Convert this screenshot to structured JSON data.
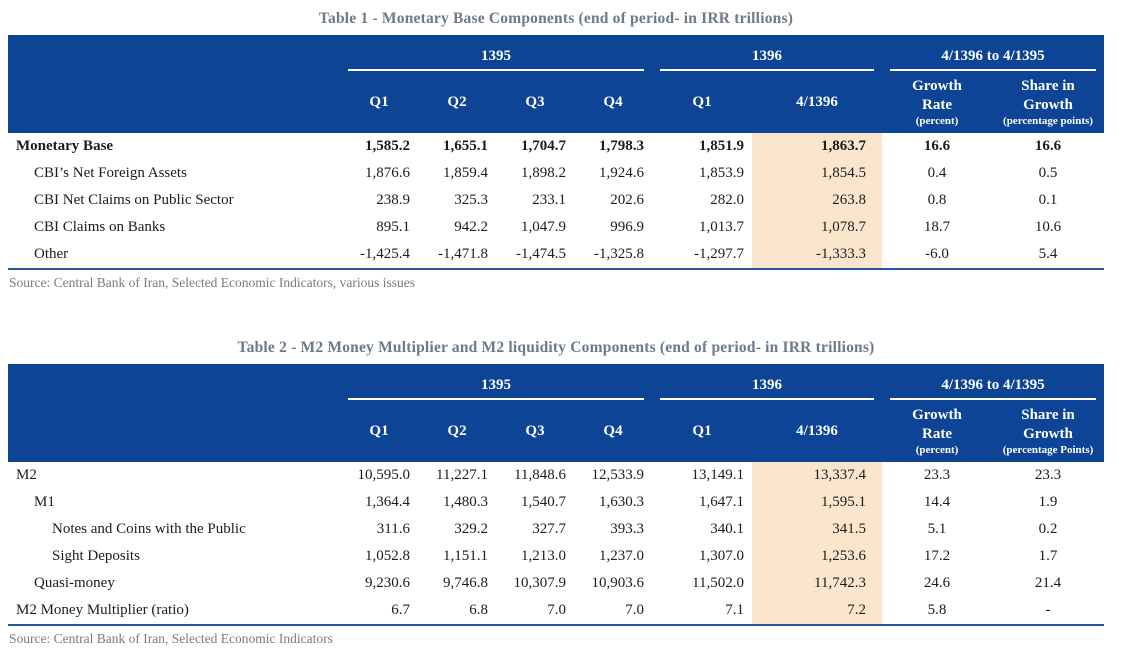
{
  "colors": {
    "header_background": "#0d4496",
    "header_text": "#ffffff",
    "highlight_column": "#fbe5cd",
    "rule_blue": "#2a52a0",
    "title_text": "#6d7a89",
    "source_text": "#797b7e",
    "body_text": "#1c1c1c"
  },
  "tables": [
    {
      "title": "Table 1 - Monetary Base Components (end of period- in IRR trillions)",
      "group_1395": "1395",
      "group_1396": "1396",
      "group_change": "4/1396 to 4/1395",
      "columns": [
        "Q1",
        "Q2",
        "Q3",
        "Q4",
        "Q1",
        "4/1396"
      ],
      "growth_header": {
        "line1": "Growth",
        "line2": "Rate",
        "sub": "(percent)"
      },
      "share_header": {
        "line1": "Share in",
        "line2": "Growth",
        "sub": "(percentage points)"
      },
      "rows": [
        {
          "label": "Monetary Base",
          "indent": 0,
          "bold": true,
          "values": [
            "1,585.2",
            "1,655.1",
            "1,704.7",
            "1,798.3",
            "1,851.9",
            "1,863.7",
            "16.6",
            "16.6"
          ]
        },
        {
          "label": "CBI’s Net Foreign Assets",
          "indent": 1,
          "bold": false,
          "values": [
            "1,876.6",
            "1,859.4",
            "1,898.2",
            "1,924.6",
            "1,853.9",
            "1,854.5",
            "0.4",
            "0.5"
          ]
        },
        {
          "label": "CBI Net Claims on Public Sector",
          "indent": 1,
          "bold": false,
          "values": [
            "238.9",
            "325.3",
            "233.1",
            "202.6",
            "282.0",
            "263.8",
            "0.8",
            "0.1"
          ]
        },
        {
          "label": "CBI Claims on Banks",
          "indent": 1,
          "bold": false,
          "values": [
            "895.1",
            "942.2",
            "1,047.9",
            "996.9",
            "1,013.7",
            "1,078.7",
            "18.7",
            "10.6"
          ]
        },
        {
          "label": "Other",
          "indent": 1,
          "bold": false,
          "values": [
            "-1,425.4",
            "-1,471.8",
            "-1,474.5",
            "-1,325.8",
            "-1,297.7",
            "-1,333.3",
            "-6.0",
            "5.4"
          ]
        }
      ],
      "source": "Source: Central Bank of Iran, Selected Economic Indicators, various issues"
    },
    {
      "title": "Table 2 - M2 Money Multiplier and M2 liquidity Components (end of period- in IRR trillions)",
      "group_1395": "1395",
      "group_1396": "1396",
      "group_change": "4/1396 to 4/1395",
      "columns": [
        "Q1",
        "Q2",
        "Q3",
        "Q4",
        "Q1",
        "4/1396"
      ],
      "growth_header": {
        "line1": "Growth",
        "line2": "Rate",
        "sub": "(percent)"
      },
      "share_header": {
        "line1": "Share in",
        "line2": "Growth",
        "sub": "(percentage Points)"
      },
      "rows": [
        {
          "label": "M2",
          "indent": 0,
          "bold": false,
          "values": [
            "10,595.0",
            "11,227.1",
            "11,848.6",
            "12,533.9",
            "13,149.1",
            "13,337.4",
            "23.3",
            "23.3"
          ]
        },
        {
          "label": "M1",
          "indent": 1,
          "bold": false,
          "values": [
            "1,364.4",
            "1,480.3",
            "1,540.7",
            "1,630.3",
            "1,647.1",
            "1,595.1",
            "14.4",
            "1.9"
          ]
        },
        {
          "label": "Notes and Coins with the Public",
          "indent": 2,
          "bold": false,
          "values": [
            "311.6",
            "329.2",
            "327.7",
            "393.3",
            "340.1",
            "341.5",
            "5.1",
            "0.2"
          ]
        },
        {
          "label": "Sight Deposits",
          "indent": 2,
          "bold": false,
          "values": [
            "1,052.8",
            "1,151.1",
            "1,213.0",
            "1,237.0",
            "1,307.0",
            "1,253.6",
            "17.2",
            "1.7"
          ]
        },
        {
          "label": "Quasi-money",
          "indent": 1,
          "bold": false,
          "values": [
            "9,230.6",
            "9,746.8",
            "10,307.9",
            "10,903.6",
            "11,502.0",
            "11,742.3",
            "24.6",
            "21.4"
          ]
        },
        {
          "label": "M2 Money Multiplier (ratio)",
          "indent": 0,
          "bold": false,
          "values": [
            "6.7",
            "6.8",
            "7.0",
            "7.0",
            "7.1",
            "7.2",
            "5.8",
            "-"
          ]
        }
      ],
      "source": "Source: Central Bank of Iran, Selected Economic Indicators"
    }
  ]
}
